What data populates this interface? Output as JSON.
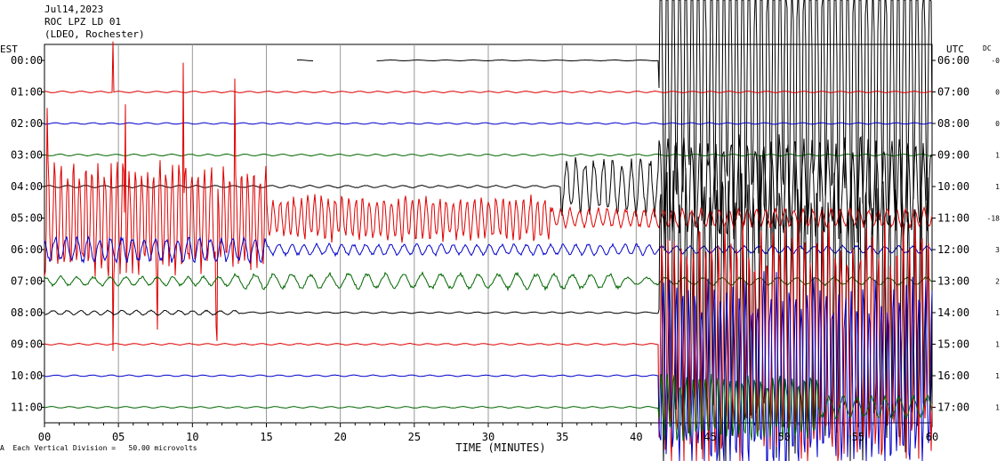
{
  "header": {
    "date": "Jul14,2023",
    "station": "ROC LPZ LD 01",
    "network": "(LDEO, Rochester)"
  },
  "labels": {
    "left_zone": "EST",
    "right_zone": "UTC",
    "dc": "DC",
    "x_axis": "TIME (MINUTES)",
    "footnote": "Each Vertical Division =   50.00 microvolts",
    "footnote_mark": "A"
  },
  "chart_data": {
    "type": "line",
    "title": "",
    "xlabel": "TIME (MINUTES)",
    "ylabel": "",
    "xlim": [
      0,
      60
    ],
    "x_ticks": [
      "00",
      "05",
      "10",
      "15",
      "20",
      "25",
      "30",
      "35",
      "40",
      "45",
      "50",
      "55",
      "60"
    ],
    "x_tick_values": [
      0,
      5,
      10,
      15,
      20,
      25,
      30,
      35,
      40,
      45,
      50,
      55,
      60
    ],
    "grid": true,
    "trace_colors": [
      "#000000",
      "#dd0000",
      "#0000cc",
      "#006600"
    ],
    "rows": [
      {
        "est": "00:00",
        "utc": "06:00",
        "dc": "-0"
      },
      {
        "est": "01:00",
        "utc": "07:00",
        "dc": "0"
      },
      {
        "est": "02:00",
        "utc": "08:00",
        "dc": "0"
      },
      {
        "est": "03:00",
        "utc": "09:00",
        "dc": "1"
      },
      {
        "est": "04:00",
        "utc": "10:00",
        "dc": "1"
      },
      {
        "est": "05:00",
        "utc": "11:00",
        "dc": "-18"
      },
      {
        "est": "06:00",
        "utc": "12:00",
        "dc": "3"
      },
      {
        "est": "07:00",
        "utc": "13:00",
        "dc": "2"
      },
      {
        "est": "08:00",
        "utc": "14:00",
        "dc": "1"
      },
      {
        "est": "09:00",
        "utc": "15:00",
        "dc": "1"
      },
      {
        "est": "10:00",
        "utc": "16:00",
        "dc": "1"
      },
      {
        "est": "11:00",
        "utc": "17:00",
        "dc": "1"
      }
    ]
  }
}
